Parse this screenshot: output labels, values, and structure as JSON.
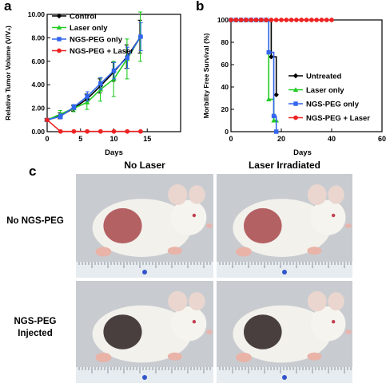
{
  "panel_labels": {
    "a": "a",
    "b": "b",
    "c": "c"
  },
  "chart_data": [
    {
      "panel": "a",
      "type": "line",
      "xlabel": "Days",
      "ylabel": "Relative Tumor Volume (V/V₀)",
      "xlim": [
        0,
        20
      ],
      "ylim": [
        0,
        10
      ],
      "xticks": [
        "0",
        "5",
        "10",
        "15"
      ],
      "yticks": [
        "0.00",
        "2.00",
        "4.00",
        "6.00",
        "8.00",
        "10.00"
      ],
      "grid": false,
      "legend": "top-left",
      "x": [
        0,
        2,
        4,
        6,
        8,
        10,
        12,
        14
      ],
      "series": [
        {
          "name": "Control",
          "color": "#000000",
          "marker": "diamond",
          "values": [
            1.0,
            1.35,
            2.0,
            2.8,
            3.9,
            5.1,
            6.4,
            8.1
          ],
          "errors": [
            0.1,
            0.25,
            0.25,
            0.4,
            0.6,
            0.8,
            1.0,
            1.4
          ]
        },
        {
          "name": "Laser only",
          "color": "#22cc22",
          "marker": "triangle",
          "values": [
            1.0,
            1.5,
            2.0,
            2.5,
            3.6,
            4.5,
            6.2,
            8.1
          ],
          "errors": [
            0.1,
            0.3,
            0.3,
            0.6,
            1.0,
            1.5,
            1.7,
            2.1
          ]
        },
        {
          "name": "NGS-PEG only",
          "color": "#3366ee",
          "marker": "square",
          "values": [
            1.0,
            1.3,
            2.1,
            3.0,
            4.1,
            5.2,
            6.3,
            8.1
          ],
          "errors": [
            0.1,
            0.2,
            0.2,
            0.4,
            0.5,
            0.7,
            0.9,
            1.2
          ]
        },
        {
          "name": "NGS-PEG + Laser",
          "color": "#ee2222",
          "marker": "circle",
          "values": [
            1.0,
            0.02,
            0.02,
            0.02,
            0.02,
            0.02,
            0.02,
            0.02
          ],
          "errors": [
            0,
            0,
            0,
            0,
            0,
            0,
            0,
            0
          ]
        }
      ]
    },
    {
      "panel": "b",
      "type": "line",
      "step": true,
      "xlabel": "Days",
      "ylabel": "Morbility Free Survival (%)",
      "xlim": [
        0,
        60
      ],
      "ylim": [
        0,
        100
      ],
      "xticks": [
        "0",
        "20",
        "40",
        "60"
      ],
      "yticks": [
        "0",
        "20",
        "40",
        "60",
        "80",
        "100"
      ],
      "grid": false,
      "legend": "bottom-right",
      "series": [
        {
          "name": "Untreated",
          "color": "#000000",
          "marker": "diamond",
          "points": [
            [
              0,
              100
            ],
            [
              2,
              100
            ],
            [
              4,
              100
            ],
            [
              6,
              100
            ],
            [
              8,
              100
            ],
            [
              10,
              100
            ],
            [
              12,
              100
            ],
            [
              14,
              100
            ],
            [
              16,
              67
            ],
            [
              18,
              33
            ]
          ]
        },
        {
          "name": "Laser only",
          "color": "#22cc22",
          "marker": "triangle",
          "points": [
            [
              0,
              100
            ],
            [
              2,
              100
            ],
            [
              4,
              100
            ],
            [
              6,
              100
            ],
            [
              8,
              100
            ],
            [
              10,
              100
            ],
            [
              12,
              100
            ],
            [
              14,
              100
            ],
            [
              15,
              29
            ],
            [
              17,
              10
            ],
            [
              18,
              10
            ]
          ]
        },
        {
          "name": "NGS-PEG only",
          "color": "#3366ee",
          "marker": "square",
          "points": [
            [
              0,
              100
            ],
            [
              2,
              100
            ],
            [
              4,
              100
            ],
            [
              6,
              100
            ],
            [
              8,
              100
            ],
            [
              10,
              100
            ],
            [
              12,
              100
            ],
            [
              14,
              100
            ],
            [
              15,
              71
            ],
            [
              17,
              14
            ],
            [
              18,
              0
            ]
          ]
        },
        {
          "name": "NGS-PEG + Laser",
          "color": "#ee2222",
          "marker": "circle",
          "points": [
            [
              0,
              100
            ],
            [
              2,
              100
            ],
            [
              4,
              100
            ],
            [
              6,
              100
            ],
            [
              8,
              100
            ],
            [
              10,
              100
            ],
            [
              12,
              100
            ],
            [
              14,
              100
            ],
            [
              16,
              100
            ],
            [
              18,
              100
            ],
            [
              20,
              100
            ],
            [
              22,
              100
            ],
            [
              24,
              100
            ],
            [
              26,
              100
            ],
            [
              28,
              100
            ],
            [
              30,
              100
            ],
            [
              32,
              100
            ],
            [
              34,
              100
            ],
            [
              36,
              100
            ],
            [
              38,
              100
            ],
            [
              40,
              100
            ]
          ]
        }
      ]
    }
  ],
  "photos": {
    "col_headers": [
      "No Laser",
      "Laser Irradiated"
    ],
    "row_labels": [
      "No NGS-PEG",
      "NGS-PEG Injected"
    ],
    "tumor_color_untreated": "#a8484c",
    "tumor_color_injected": "#2a2020",
    "background_color": "#c8ccd0",
    "ruler_color": "#e6ecef"
  }
}
